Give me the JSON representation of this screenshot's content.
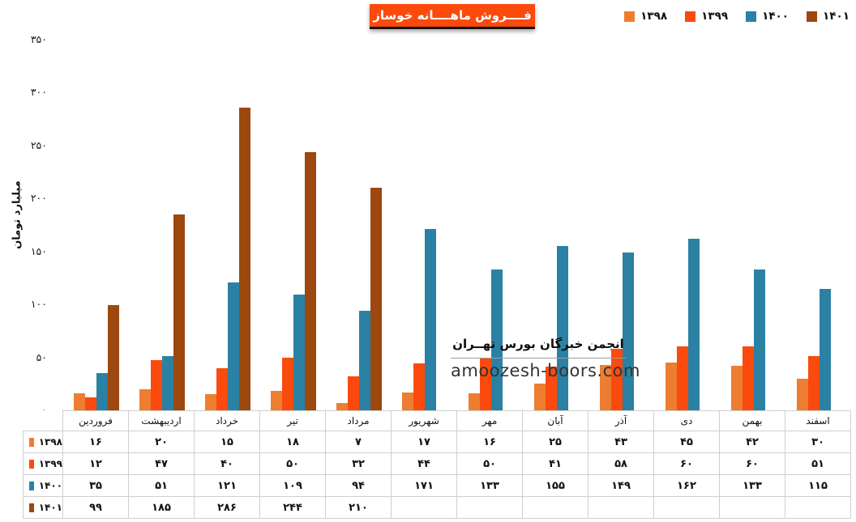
{
  "title": "فــــروش ماهــــانه خوساز",
  "watermark": {
    "line1": "انجمن خبرگان بورس تهــران",
    "line2": "amoozesh-boors.com"
  },
  "colors": {
    "series_1398": "#ED7D31",
    "series_1399": "#FB4A0D",
    "series_1400": "#2B81A3",
    "series_1401": "#9C480E",
    "title_background": "#FB4A0C",
    "table_border": "#cfcfcf"
  },
  "chart_data": {
    "type": "bar",
    "title": "فــــروش ماهــــانه خوساز",
    "xlabel": "",
    "ylabel": "میلیارد تومان",
    "ylim": [
      0,
      350
    ],
    "y_tick_step": 50,
    "y_ticks": [
      0,
      50,
      100,
      150,
      200,
      250,
      300,
      350
    ],
    "grid": false,
    "legend_position": "top-right",
    "categories": [
      "فروردین",
      "اردیبهشت",
      "خرداد",
      "تیر",
      "مرداد",
      "شهریور",
      "مهر",
      "آبان",
      "آذر",
      "دی",
      "بهمن",
      "اسفند"
    ],
    "series": [
      {
        "name": "۱۳۹۸",
        "year": 1398,
        "color": "#ED7D31",
        "values": [
          16,
          20,
          15,
          18,
          7,
          17,
          16,
          25,
          43,
          45,
          42,
          30
        ]
      },
      {
        "name": "۱۳۹۹",
        "year": 1399,
        "color": "#FB4A0D",
        "values": [
          12,
          47,
          40,
          50,
          32,
          44,
          50,
          41,
          58,
          60,
          60,
          51
        ]
      },
      {
        "name": "۱۴۰۰",
        "year": 1400,
        "color": "#2B81A3",
        "values": [
          35,
          51,
          121,
          109,
          94,
          171,
          133,
          155,
          149,
          162,
          133,
          115
        ]
      },
      {
        "name": "۱۴۰۱",
        "year": 1401,
        "color": "#9C480E",
        "values": [
          99,
          185,
          286,
          244,
          210,
          null,
          null,
          null,
          null,
          null,
          null,
          null
        ]
      }
    ]
  }
}
